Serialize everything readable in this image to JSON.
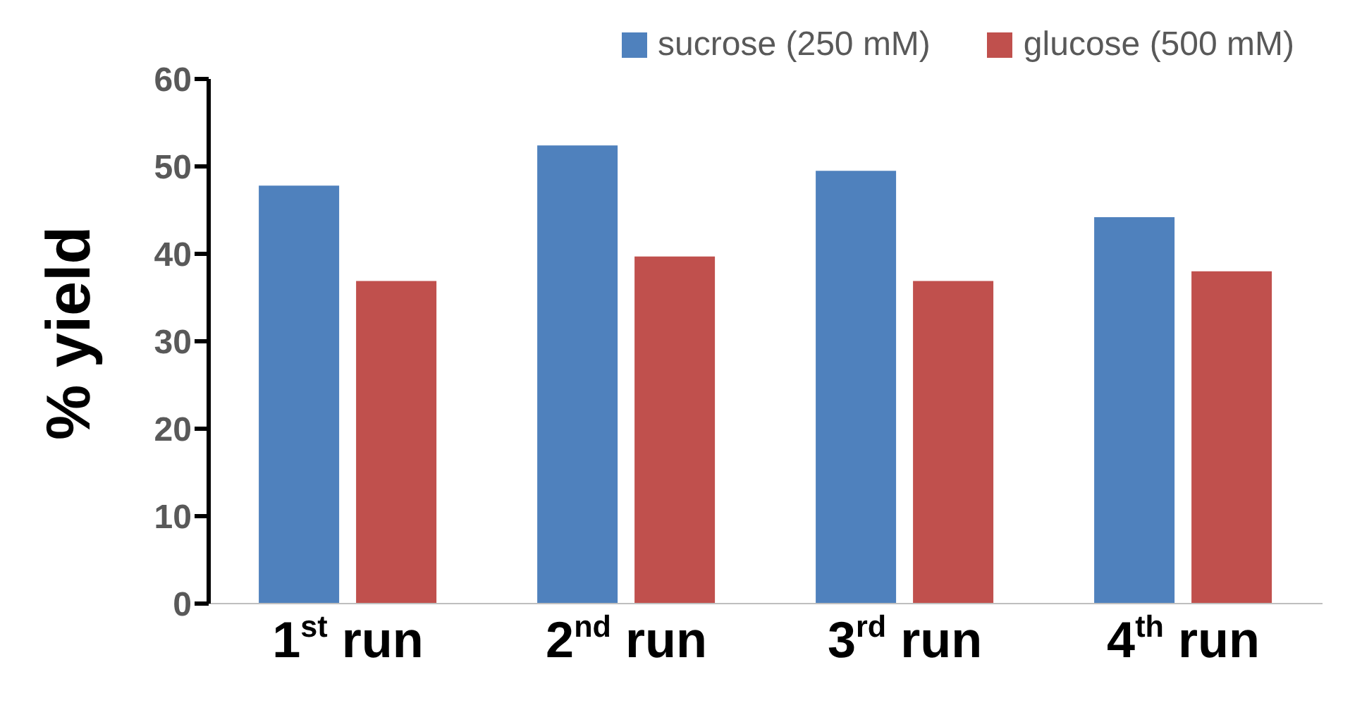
{
  "chart_data": {
    "type": "bar",
    "ylabel": "% yield",
    "categories": [
      "1$^{st}$ run",
      "2$^{nd}$ run",
      "3$^{rd}$ run",
      "4$^{th}$ run"
    ],
    "series": [
      {
        "name": "sucrose (250 mM)",
        "color": "#4f81bd",
        "values": [
          47.8,
          52.4,
          49.5,
          44.2
        ]
      },
      {
        "name": "glucose (500 mM)",
        "color": "#c0504d",
        "values": [
          36.9,
          39.7,
          36.9,
          38.0
        ]
      }
    ],
    "ylim": [
      0,
      60
    ],
    "yticks": [
      0,
      10,
      20,
      30,
      40,
      50,
      60
    ],
    "grid": false,
    "legend": "top right"
  }
}
